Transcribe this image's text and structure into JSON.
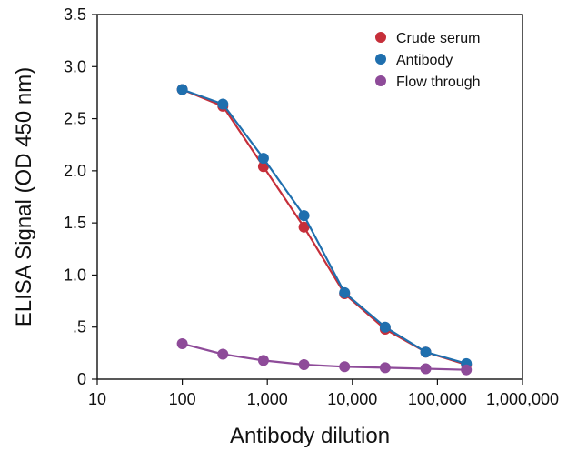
{
  "chart_data": {
    "type": "line",
    "title": "",
    "xlabel": "Antibody dilution",
    "ylabel": "ELISA Signal (OD 450 nm)",
    "x_scale": "log",
    "xlim": [
      10,
      1000000
    ],
    "ylim": [
      0,
      3.5
    ],
    "x_ticks": [
      10,
      100,
      1000,
      10000,
      100000,
      1000000
    ],
    "x_tick_labels": [
      "10",
      "100",
      "1,000",
      "10,000",
      "100,000",
      "1,000,000"
    ],
    "y_ticks": [
      0,
      0.5,
      1.0,
      1.5,
      2.0,
      2.5,
      3.0,
      3.5
    ],
    "y_tick_labels": [
      "0",
      ".5",
      "1.0",
      "1.5",
      "2.0",
      "2.5",
      "3.0",
      "3.5"
    ],
    "grid": false,
    "legend_position": "top-right",
    "series": [
      {
        "name": "Crude serum",
        "color": "#c62f3a",
        "x": [
          100,
          300,
          900,
          2700,
          8100,
          24300,
          72900,
          218700
        ],
        "y": [
          2.78,
          2.62,
          2.04,
          1.46,
          0.82,
          0.48,
          0.26,
          0.14
        ]
      },
      {
        "name": "Antibody",
        "color": "#1f6fae",
        "x": [
          100,
          300,
          900,
          2700,
          8100,
          24300,
          72900,
          218700
        ],
        "y": [
          2.78,
          2.64,
          2.12,
          1.57,
          0.83,
          0.5,
          0.26,
          0.15
        ]
      },
      {
        "name": "Flow through",
        "color": "#8e4b99",
        "x": [
          100,
          300,
          900,
          2700,
          8100,
          24300,
          72900,
          218700
        ],
        "y": [
          0.34,
          0.24,
          0.18,
          0.14,
          0.12,
          0.11,
          0.1,
          0.09
        ]
      }
    ]
  }
}
